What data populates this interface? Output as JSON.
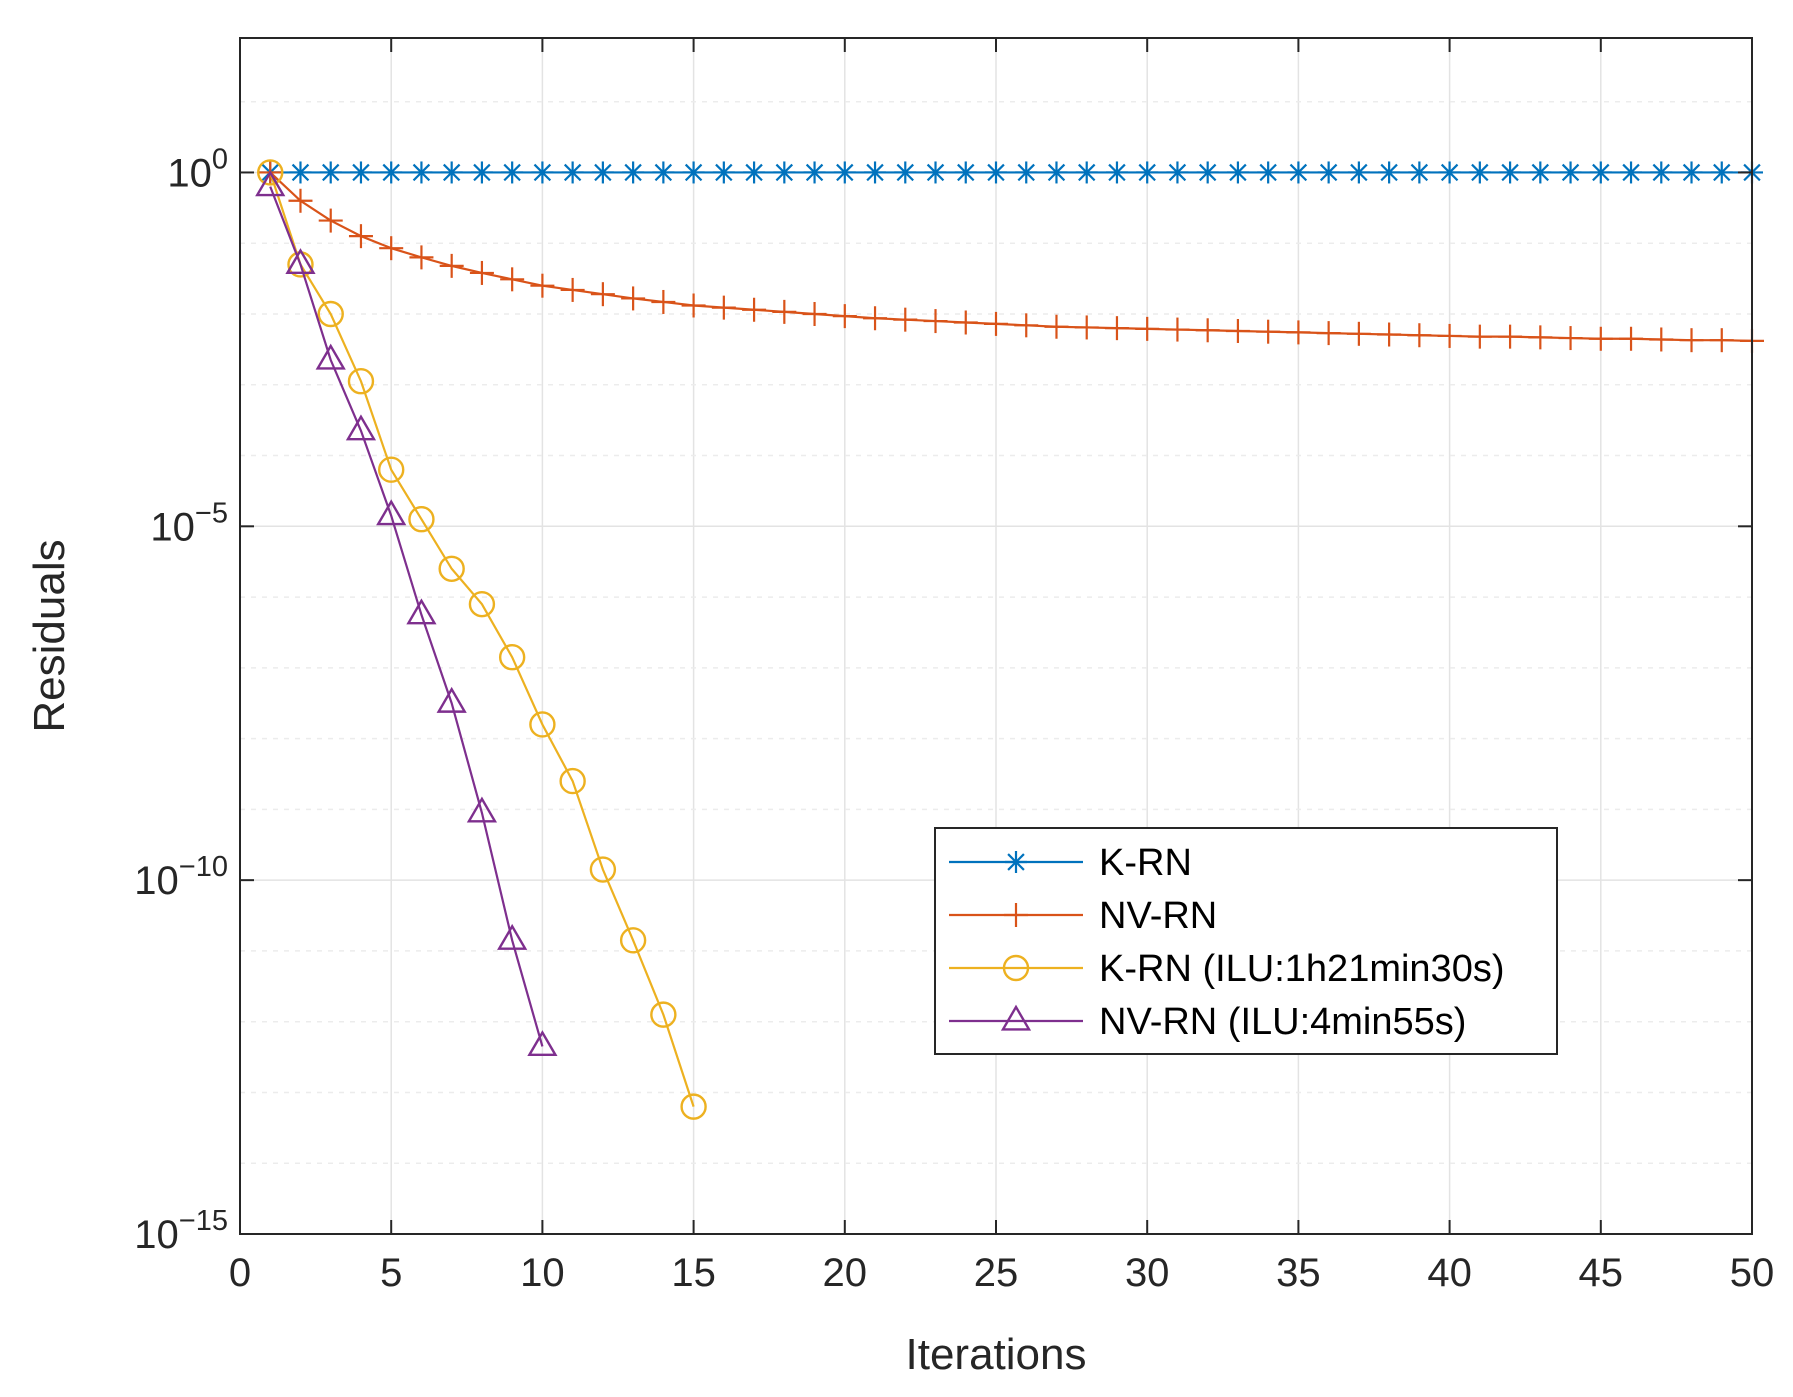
{
  "chart_data": {
    "type": "line",
    "title": "",
    "xlabel": "Iterations",
    "ylabel": "Residuals",
    "xlim": [
      0,
      50
    ],
    "ylim_log10": [
      -15,
      1.9
    ],
    "yscale": "log",
    "grid": true,
    "legend_position": "lower-right",
    "xticks": [
      "0",
      "5",
      "10",
      "15",
      "20",
      "25",
      "30",
      "35",
      "40",
      "45",
      "50"
    ],
    "yticks": [
      {
        "base": "10",
        "exp": "0",
        "log10": 0
      },
      {
        "base": "10",
        "exp": "−5",
        "log10": -5
      },
      {
        "base": "10",
        "exp": "−10",
        "log10": -10
      },
      {
        "base": "10",
        "exp": "−15",
        "log10": -15
      }
    ],
    "series": [
      {
        "name": "K-RN",
        "color": "#0072BD",
        "marker": "asterisk",
        "x": [
          1,
          2,
          3,
          4,
          5,
          6,
          7,
          8,
          9,
          10,
          11,
          12,
          13,
          14,
          15,
          16,
          17,
          18,
          19,
          20,
          21,
          22,
          23,
          24,
          25,
          26,
          27,
          28,
          29,
          30,
          31,
          32,
          33,
          34,
          35,
          36,
          37,
          38,
          39,
          40,
          41,
          42,
          43,
          44,
          45,
          46,
          47,
          48,
          49,
          50
        ],
        "log10_y": [
          0,
          0,
          0,
          0,
          0,
          0,
          0,
          0,
          0,
          0,
          0,
          0,
          0,
          0,
          0,
          0,
          0,
          0,
          0,
          0,
          0,
          0,
          0,
          0,
          0,
          0,
          0,
          0,
          0,
          0,
          0,
          0,
          0,
          0,
          0,
          0,
          0,
          0,
          0,
          0,
          0,
          0,
          0,
          0,
          0,
          0,
          0,
          0,
          0,
          0
        ]
      },
      {
        "name": "NV-RN",
        "color": "#D95319",
        "marker": "plus",
        "x": [
          1,
          2,
          3,
          4,
          5,
          6,
          7,
          8,
          9,
          10,
          11,
          12,
          13,
          14,
          15,
          16,
          17,
          18,
          19,
          20,
          21,
          22,
          23,
          24,
          25,
          26,
          27,
          28,
          29,
          30,
          31,
          32,
          33,
          34,
          35,
          36,
          37,
          38,
          39,
          40,
          41,
          42,
          43,
          44,
          45,
          46,
          47,
          48,
          49,
          50
        ],
        "log10_y": [
          0,
          -0.4,
          -0.68,
          -0.9,
          -1.07,
          -1.2,
          -1.32,
          -1.42,
          -1.51,
          -1.6,
          -1.66,
          -1.72,
          -1.78,
          -1.83,
          -1.88,
          -1.91,
          -1.94,
          -1.97,
          -2.0,
          -2.03,
          -2.06,
          -2.08,
          -2.1,
          -2.12,
          -2.14,
          -2.16,
          -2.18,
          -2.19,
          -2.2,
          -2.21,
          -2.22,
          -2.23,
          -2.24,
          -2.25,
          -2.26,
          -2.27,
          -2.28,
          -2.29,
          -2.3,
          -2.31,
          -2.32,
          -2.32,
          -2.33,
          -2.34,
          -2.35,
          -2.35,
          -2.36,
          -2.37,
          -2.37,
          -2.38
        ]
      },
      {
        "name": "K-RN (ILU:1h21min30s)",
        "color": "#EDB120",
        "marker": "circle",
        "x": [
          1,
          2,
          3,
          4,
          5,
          6,
          7,
          8,
          9,
          10,
          11,
          12,
          13,
          14,
          15
        ],
        "log10_y": [
          0,
          -1.3,
          -2.0,
          -2.95,
          -4.2,
          -4.9,
          -5.6,
          -6.1,
          -6.85,
          -7.8,
          -8.6,
          -9.85,
          -10.85,
          -11.9,
          -13.2
        ]
      },
      {
        "name": "NV-RN (ILU:4min55s)",
        "color": "#7E2F8E",
        "marker": "triangle",
        "x": [
          1,
          2,
          3,
          4,
          5,
          6,
          7,
          8,
          9,
          10
        ],
        "log10_y": [
          -0.2,
          -1.3,
          -2.65,
          -3.65,
          -4.85,
          -6.25,
          -7.5,
          -9.05,
          -10.85,
          -12.35
        ]
      }
    ]
  }
}
